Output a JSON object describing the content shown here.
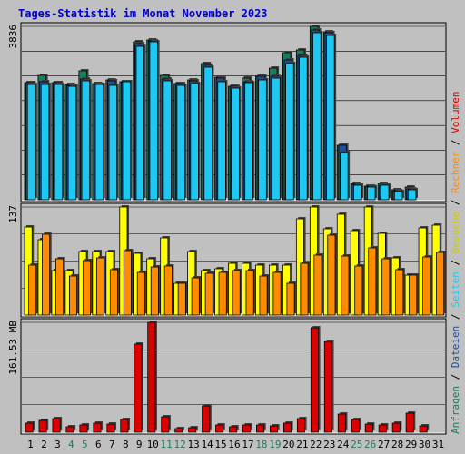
{
  "title": "Tages-Statistik im Monat November 2023",
  "colors": {
    "background": "#c0c0c0",
    "title": "#0000cc",
    "anfragen": "#1e7a5c",
    "dateien": "#1e4fa0",
    "seiten": "#1ec8f0",
    "besuche": "#ffff00",
    "rechner": "#ff8c00",
    "volumen": "#dd0000",
    "weekend_label": "#1e7a5c"
  },
  "legend": [
    {
      "label": "Anfragen",
      "color": "#1e7a5c"
    },
    {
      "label": " / ",
      "color": "#000000"
    },
    {
      "label": "Dateien",
      "color": "#1e4fa0"
    },
    {
      "label": " / ",
      "color": "#000000"
    },
    {
      "label": "Seiten",
      "color": "#1ec8f0"
    },
    {
      "label": " / ",
      "color": "#000000"
    },
    {
      "label": "Besuche",
      "color": "#cccc00"
    },
    {
      "label": " / ",
      "color": "#000000"
    },
    {
      "label": "Rechner",
      "color": "#ff8c00"
    },
    {
      "label": " / ",
      "color": "#000000"
    },
    {
      "label": "Volumen",
      "color": "#dd0000"
    }
  ],
  "chart_data": {
    "type": "bar",
    "title": "Tages-Statistik im Monat November 2023",
    "days": [
      "1",
      "2",
      "3",
      "4",
      "5",
      "6",
      "7",
      "8",
      "9",
      "10",
      "11",
      "12",
      "13",
      "14",
      "15",
      "16",
      "17",
      "18",
      "19",
      "20",
      "21",
      "22",
      "23",
      "24",
      "25",
      "26",
      "27",
      "28",
      "29",
      "30",
      "31"
    ],
    "weekend_days": [
      "4",
      "5",
      "11",
      "12",
      "18",
      "19",
      "25",
      "26"
    ],
    "panels": [
      {
        "name": "requests",
        "max_label": "3836",
        "max": 3836,
        "series": [
          {
            "name": "Anfragen",
            "values": [
              2600,
              2760,
              2600,
              2560,
              2850,
              2570,
              2650,
              2620,
              3500,
              3540,
              2760,
              2570,
              2650,
              3020,
              2710,
              2520,
              2690,
              2740,
              2910,
              3250,
              3310,
              3836,
              3710,
              1200,
              360,
              310,
              370,
              220,
              280,
              0,
              0
            ]
          },
          {
            "name": "Dateien",
            "values": [
              2590,
              2620,
              2590,
              2530,
              2670,
              2560,
              2640,
              2620,
              3460,
              3520,
              2680,
              2570,
              2640,
              2970,
              2700,
              2520,
              2620,
              2740,
              2740,
              3100,
              3200,
              3760,
              3690,
              1200,
              340,
              310,
              330,
              210,
              240,
              0,
              0
            ]
          },
          {
            "name": "Seiten",
            "values": [
              2550,
              2560,
              2560,
              2520,
              2640,
              2550,
              2540,
              2610,
              3400,
              3490,
              2640,
              2530,
              2580,
              2940,
              2620,
              2480,
              2600,
              2660,
              2690,
              3010,
              3150,
              3700,
              3640,
              1040,
              330,
              290,
              320,
              190,
              230,
              0,
              0
            ]
          }
        ]
      },
      {
        "name": "visits",
        "max_label": "137",
        "max": 137,
        "series": [
          {
            "name": "Besuche",
            "values": [
              112,
              95,
              56,
              56,
              81,
              81,
              81,
              137,
              78,
              71,
              98,
              40,
              81,
              56,
              59,
              66,
              66,
              63,
              63,
              63,
              122,
              137,
              109,
              128,
              107,
              137,
              104,
              73,
              51,
              111,
              114
            ]
          },
          {
            "name": "Rechner",
            "values": [
              63,
              102,
              71,
              49,
              69,
              73,
              58,
              82,
              54,
              61,
              62,
              40,
              47,
              53,
              54,
              56,
              56,
              49,
              54,
              40,
              66,
              76,
              101,
              75,
              62,
              85,
              71,
              57,
              51,
              74,
              79
            ]
          }
        ]
      },
      {
        "name": "volume",
        "max_label": "161.53 MB",
        "max": 161.53,
        "series": [
          {
            "name": "Volumen",
            "values": [
              13.5,
              17.2,
              20.3,
              8.4,
              10.8,
              13.5,
              11.6,
              18.2,
              129,
              161.53,
              22.5,
              5,
              6.1,
              38.6,
              11.3,
              7.4,
              11.1,
              11.1,
              9.1,
              13.3,
              20,
              154,
              134,
              26.4,
              19.3,
              11.5,
              11.1,
              13.4,
              27.5,
              8.8,
              0
            ]
          }
        ]
      }
    ]
  }
}
